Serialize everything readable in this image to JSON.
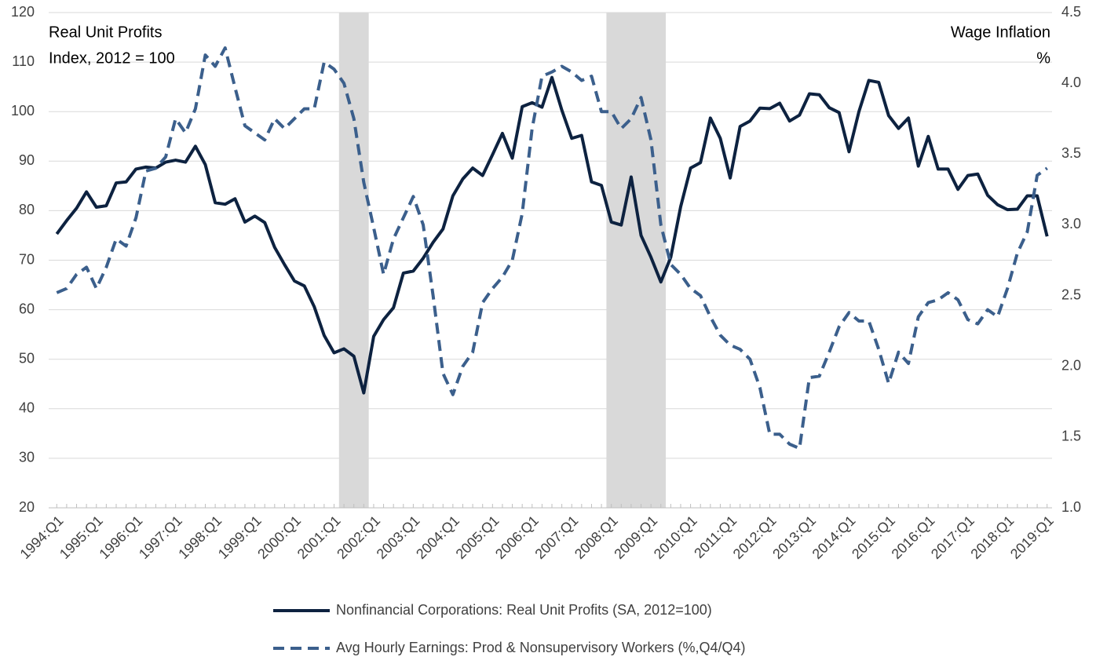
{
  "chart_data": {
    "type": "line",
    "y_axis_label": [
      "Real Unit Profits",
      "Index, 2012 = 100"
    ],
    "y2_axis_label": [
      "Wage Inflation",
      "%"
    ],
    "categories": [
      "1994:Q1",
      null,
      null,
      null,
      "1995:Q1",
      null,
      null,
      null,
      "1996:Q1",
      null,
      null,
      null,
      "1997:Q1",
      null,
      null,
      null,
      "1998:Q1",
      null,
      null,
      null,
      "1999:Q1",
      null,
      null,
      null,
      "2000:Q1",
      null,
      null,
      null,
      "2001:Q1",
      null,
      null,
      null,
      "2002:Q1",
      null,
      null,
      null,
      "2003:Q1",
      null,
      null,
      null,
      "2004:Q1",
      null,
      null,
      null,
      "2005:Q1",
      null,
      null,
      null,
      "2006:Q1",
      null,
      null,
      null,
      "2007:Q1",
      null,
      null,
      null,
      "2008:Q1",
      null,
      null,
      null,
      "2009:Q1",
      null,
      null,
      null,
      "2010:Q1",
      null,
      null,
      null,
      "2011:Q1",
      null,
      null,
      null,
      "2012:Q1",
      null,
      null,
      null,
      "2013:Q1",
      null,
      null,
      null,
      "2014:Q1",
      null,
      null,
      null,
      "2015:Q1",
      null,
      null,
      null,
      "2016:Q1",
      null,
      null,
      null,
      "2017:Q1",
      null,
      null,
      null,
      "2018:Q1",
      null,
      null,
      null,
      "2019:Q1"
    ],
    "series": [
      {
        "name": "Nonfinancial Corporations: Real Unit Profits (SA, 2012=100)",
        "color": "#0d2240",
        "dash": false,
        "axis": "y",
        "values": [
          75.3,
          78,
          80.5,
          83.8,
          80.7,
          81,
          85.6,
          85.8,
          88.4,
          88.8,
          88.6,
          89.8,
          90.2,
          89.8,
          93,
          89.3,
          81.6,
          81.3,
          82.4,
          77.7,
          78.9,
          77.6,
          72.6,
          69.1,
          65.8,
          64.8,
          60.6,
          54.8,
          51.3,
          52.1,
          50.6,
          43.2,
          54.6,
          58,
          60.4,
          67.4,
          67.8,
          70.4,
          73.6,
          76.3,
          83,
          86.4,
          88.6,
          87.1,
          91.3,
          95.6,
          90.6,
          101,
          101.8,
          100.9,
          106.9,
          100.3,
          94.6,
          95.2,
          85.8,
          85.1,
          77.7,
          77.1,
          86.8,
          75,
          70.6,
          65.6,
          70.6,
          80.8,
          88.6,
          89.7,
          98.7,
          94.6,
          86.6,
          97,
          98.1,
          100.7,
          100.6,
          101.7,
          98.1,
          99.3,
          103.6,
          103.4,
          100.8,
          99.8,
          91.9,
          100,
          106.3,
          105.9,
          99.2,
          96.6,
          98.7,
          89,
          95,
          88.4,
          88.4,
          84.3,
          87.1,
          87.4,
          83.1,
          81.2,
          80.2,
          80.3,
          83,
          83,
          74.8
        ]
      },
      {
        "name": "Avg Hourly Earnings: Prod & Nonsupervisory Workers (%,Q4/Q4)",
        "color": "#3b5f8c",
        "dash": true,
        "axis": "y2",
        "values": [
          2.52,
          2.55,
          2.65,
          2.7,
          2.55,
          2.7,
          2.9,
          2.85,
          3.05,
          3.38,
          3.4,
          3.48,
          3.75,
          3.65,
          3.82,
          4.2,
          4.12,
          4.25,
          3.97,
          3.7,
          3.65,
          3.6,
          3.75,
          3.68,
          3.75,
          3.82,
          3.82,
          4.15,
          4.1,
          4.0,
          3.75,
          3.3,
          2.98,
          2.65,
          2.9,
          3.05,
          3.2,
          3.0,
          2.5,
          1.95,
          1.8,
          2.0,
          2.1,
          2.45,
          2.55,
          2.63,
          2.75,
          3.08,
          3.68,
          4.05,
          4.08,
          4.12,
          4.08,
          4.02,
          4.05,
          3.8,
          3.8,
          3.68,
          3.75,
          3.9,
          3.6,
          3.0,
          2.72,
          2.65,
          2.55,
          2.5,
          2.35,
          2.22,
          2.15,
          2.12,
          2.05,
          1.85,
          1.52,
          1.52,
          1.45,
          1.42,
          1.92,
          1.93,
          2.1,
          2.28,
          2.38,
          2.32,
          2.32,
          2.12,
          1.88,
          2.1,
          2.02,
          2.35,
          2.45,
          2.47,
          2.52,
          2.47,
          2.33,
          2.3,
          2.4,
          2.35,
          2.55,
          2.8,
          2.95,
          3.35,
          3.4
        ]
      }
    ],
    "ylim": [
      20,
      120
    ],
    "yticks": [
      20,
      30,
      40,
      50,
      60,
      70,
      80,
      90,
      100,
      110,
      120
    ],
    "y2lim": [
      1,
      4.5
    ],
    "y2ticks": [
      {
        "value": 1,
        "label": "1.0"
      },
      1.5,
      {
        "value": 2,
        "label": "2.0"
      },
      2.5,
      {
        "value": 3,
        "label": "3.0"
      },
      3.5,
      {
        "value": 4,
        "label": "4.0"
      },
      4.5
    ],
    "shaded_ranges": [
      [
        28.5,
        31.5
      ],
      [
        55.5,
        61.5
      ]
    ],
    "shade_color": "#d9d9d9",
    "grid": true,
    "legend": "bottom"
  }
}
